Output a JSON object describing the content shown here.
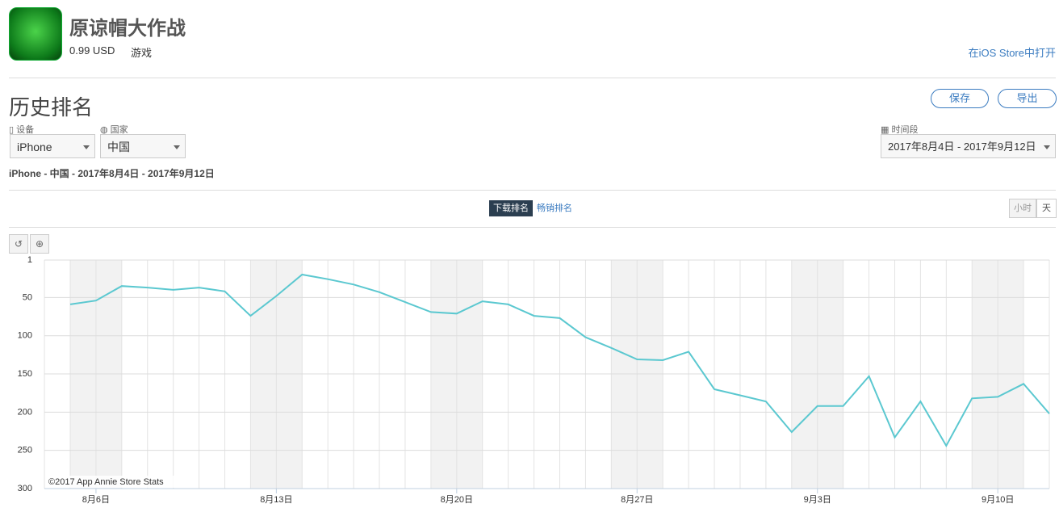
{
  "app": {
    "name": "原谅帽大作战",
    "price": "0.99 USD",
    "category": "游戏",
    "store_link": "在iOS Store中打开"
  },
  "section_title": "历史排名",
  "actions": {
    "save": "保存",
    "export": "导出"
  },
  "filters": {
    "device_label": "设备",
    "device": "iPhone",
    "country_label": "国家",
    "country": "中国",
    "period_label": "时间段",
    "period": "2017年8月4日 - 2017年9月12日"
  },
  "summary": "iPhone - 中国 - 2017年8月4日 - 2017年9月12日",
  "tabs": [
    "下载排名",
    "畅销排名"
  ],
  "granularity": [
    "小时",
    "天"
  ],
  "chart_data": {
    "type": "line",
    "categories": [
      null,
      "8月6日",
      null,
      null,
      null,
      null,
      null,
      null,
      "8月13日",
      null,
      null,
      null,
      null,
      null,
      null,
      "8月20日",
      null,
      null,
      null,
      null,
      null,
      null,
      "8月27日",
      null,
      null,
      null,
      null,
      null,
      null,
      "9月3日",
      null,
      null,
      null,
      null,
      null,
      null,
      "9月10日",
      null,
      null
    ],
    "values": [
      59,
      54,
      35,
      37,
      40,
      37,
      42,
      74,
      48,
      20,
      26,
      33,
      43,
      56,
      69,
      71,
      55,
      59,
      74,
      77,
      102,
      116,
      131,
      132,
      121,
      170,
      178,
      186,
      226,
      192,
      192,
      153,
      233,
      186,
      244,
      182,
      180,
      163,
      202
    ],
    "color": "#5bc8d0",
    "ylim": [
      1,
      300
    ],
    "y_reversed": true,
    "yticks": [
      1,
      50,
      100,
      150,
      200,
      250,
      300
    ],
    "grid": true,
    "credit": "©2017 App Annie Store Stats"
  }
}
